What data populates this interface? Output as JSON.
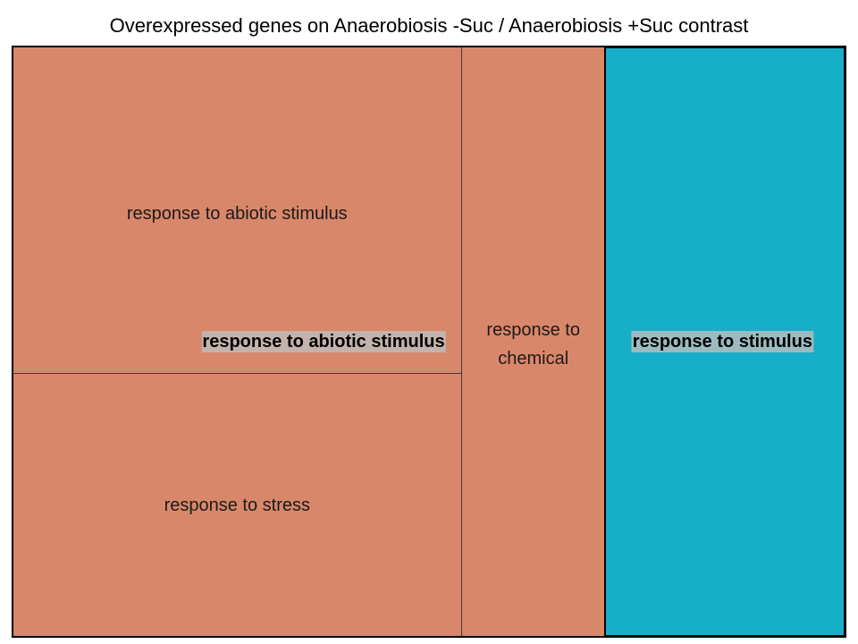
{
  "chart_data": {
    "type": "treemap",
    "title": "Overexpressed genes on Anaerobiosis -Suc / Anaerobiosis +Suc contrast",
    "groups": [
      {
        "name": "response to abiotic stimulus",
        "color": "#d9876a",
        "children": [
          {
            "name": "response to abiotic stimulus",
            "value": 36.5
          },
          {
            "name": "response to stress",
            "value": 29.4
          }
        ]
      },
      {
        "name": "response to stimulus",
        "color": "#d9876a",
        "children": [
          {
            "name": "response to chemical",
            "value": 21.0
          }
        ]
      },
      {
        "name": "response to stimulus",
        "color": "#17aec8",
        "children": [
          {
            "name": "response to stimulus",
            "value": 35.3
          }
        ]
      }
    ]
  },
  "labels": {
    "cell_abiotic": "response to abiotic stimulus",
    "cell_stress": "response to stress",
    "cell_chemical_line1": "response to",
    "cell_chemical_line2": "chemical",
    "group_abiotic": "response to abiotic stimulus",
    "group_stimulus": "response to stimulus"
  },
  "colors": {
    "salmon": "#d9876a",
    "teal": "#17aec8",
    "label_bg": "#bebebe"
  }
}
